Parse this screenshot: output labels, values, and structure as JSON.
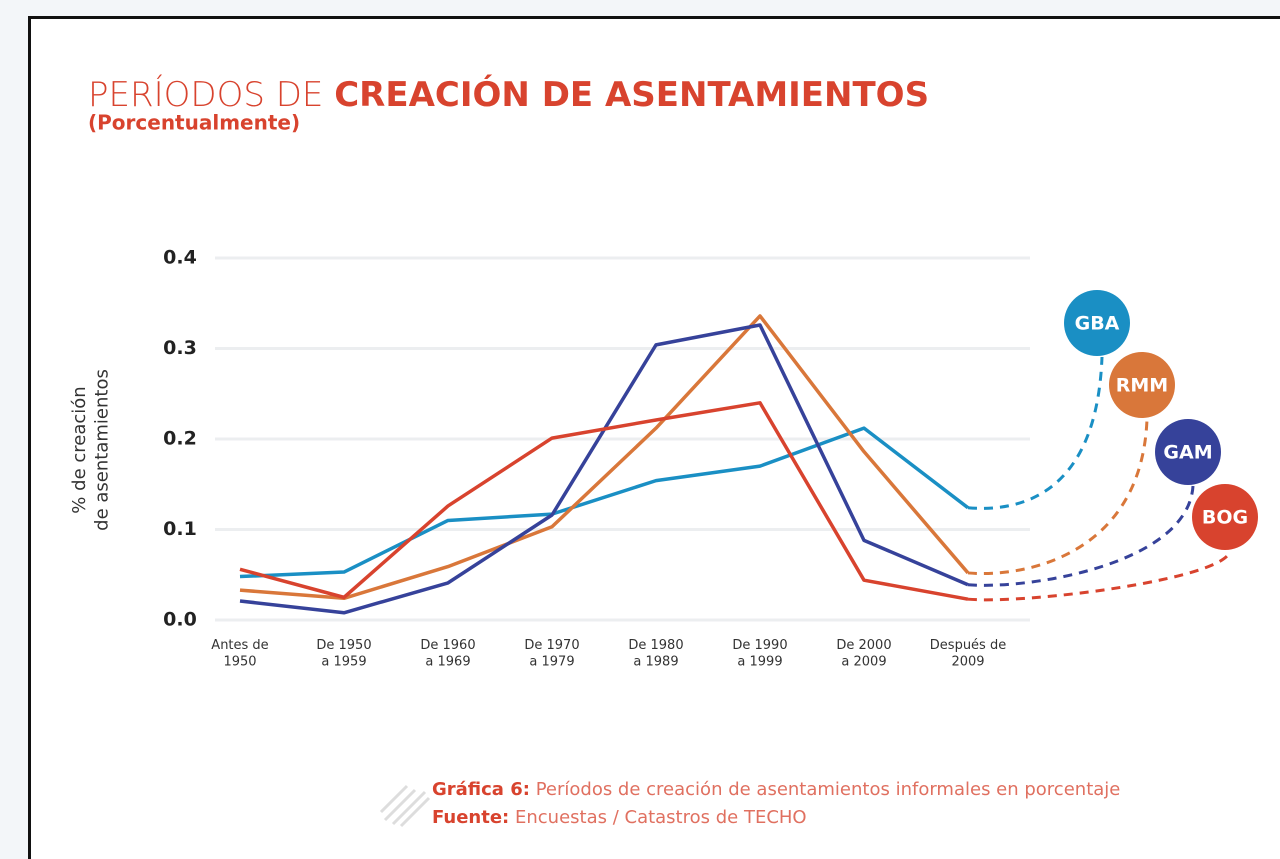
{
  "chart_data": {
    "type": "line",
    "title": {
      "light": "PERÍODOS DE",
      "bold": "CREACIÓN DE ASENTAMIENTOS"
    },
    "subtitle": "(Porcentualmente)",
    "ylabel": "% de creación de asentamientos",
    "categories": [
      "Antes de 1950",
      "De 1950 a 1959",
      "De 1960 a 1969",
      "De 1970 a 1979",
      "De 1980 a 1989",
      "De 1990 a 1999",
      "De 2000 a 2009",
      "Después de 2009"
    ],
    "series": [
      {
        "name": "GBA",
        "color": "#1a8fc4",
        "values": [
          0.048,
          0.053,
          0.11,
          0.117,
          0.154,
          0.17,
          0.212,
          0.124
        ]
      },
      {
        "name": "RMM",
        "color": "#d9773a",
        "values": [
          0.033,
          0.024,
          0.059,
          0.103,
          0.212,
          0.336,
          0.186,
          0.052
        ]
      },
      {
        "name": "GAM",
        "color": "#36429a",
        "values": [
          0.021,
          0.008,
          0.041,
          0.116,
          0.304,
          0.326,
          0.088,
          0.039
        ]
      },
      {
        "name": "BOG",
        "color": "#d8432e",
        "values": [
          0.056,
          0.025,
          0.126,
          0.201,
          0.221,
          0.24,
          0.044,
          0.023
        ]
      }
    ],
    "ylim": [
      0,
      0.4
    ],
    "yticks": [
      {
        "value": 0,
        "label": "0.0"
      },
      0.1,
      0.2,
      0.3,
      0.4
    ],
    "grid": true,
    "caption": {
      "label": "Gráfica 6:",
      "text": "Períodos de creación de asentamientos informales en porcentaje"
    },
    "source": {
      "label": "Fuente:",
      "text": "Encuestas / Catastros de TECHO"
    }
  }
}
